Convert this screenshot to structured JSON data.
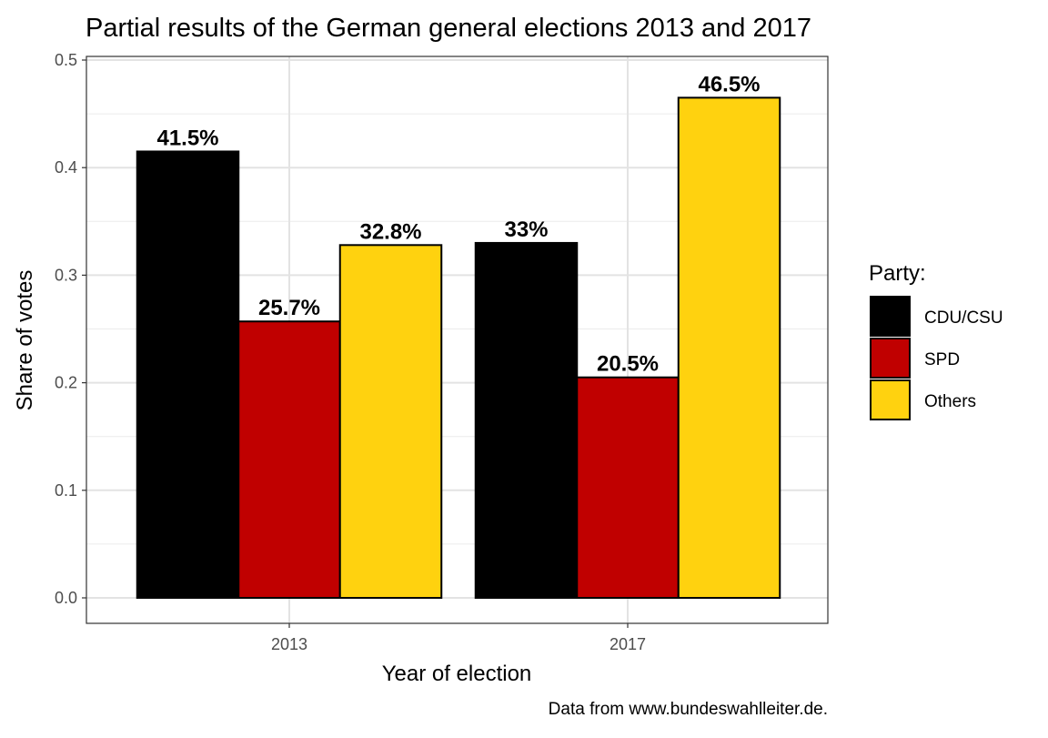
{
  "chart_data": {
    "type": "bar",
    "title": "Partial results of the German general elections 2013 and 2017",
    "xlabel": "Year of election",
    "ylabel": "Share of votes",
    "caption": "Data from www.bundeswahlleiter.de.",
    "categories": [
      "2013",
      "2017"
    ],
    "ylim": [
      0,
      0.5
    ],
    "yticks": [
      "0.0",
      "0.1",
      "0.2",
      "0.3",
      "0.4",
      "0.5"
    ],
    "grid": true,
    "legend": {
      "title": "Party:",
      "placement": "right"
    },
    "series": [
      {
        "name": "CDU/CSU",
        "color": "#000000",
        "values": [
          0.415,
          0.33
        ],
        "labels": [
          "41.5%",
          "33%"
        ]
      },
      {
        "name": "SPD",
        "color": "#C00000",
        "values": [
          0.257,
          0.205
        ],
        "labels": [
          "25.7%",
          "20.5%"
        ]
      },
      {
        "name": "Others",
        "color": "#FFD20F",
        "values": [
          0.328,
          0.465
        ],
        "labels": [
          "32.8%",
          "46.5%"
        ]
      }
    ]
  }
}
